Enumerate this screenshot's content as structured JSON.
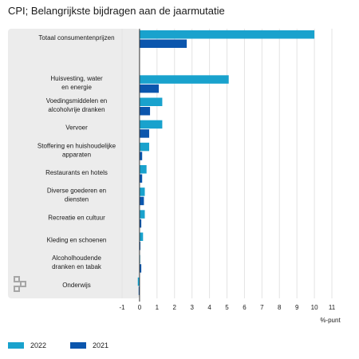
{
  "title": "CPI; Belangrijkste bijdragen aan de jaarmutatie",
  "colors": {
    "s2022": "#19a2cd",
    "s2021": "#0b56ad",
    "panel": "#ececec"
  },
  "logo_icon": "cbs-logo",
  "chart_data": {
    "type": "bar",
    "orientation": "horizontal",
    "title": "CPI; Belangrijkste bijdragen aan de jaarmutatie",
    "xlabel": "%-punt",
    "xlim": [
      -1,
      11
    ],
    "xticks": [
      -1,
      0,
      1,
      2,
      3,
      4,
      5,
      6,
      7,
      8,
      9,
      10,
      11
    ],
    "grid": true,
    "legend_position": "bottom-left",
    "categories": [
      [
        "Totaal consumentenprijzen"
      ],
      [],
      [
        "Huisvesting, water",
        "en energie"
      ],
      [
        "Voedingsmiddelen en",
        "alcoholvrije dranken"
      ],
      [
        "Vervoer"
      ],
      [
        "Stoffering en huishoudelijke",
        "apparaten"
      ],
      [
        "Restaurants en hotels"
      ],
      [
        "Diverse goederen en",
        "diensten"
      ],
      [
        "Recreatie en cultuur"
      ],
      [
        "Kleding en schoenen"
      ],
      [
        "Alcoholhoudende",
        "dranken en tabak"
      ],
      [
        "Onderwijs"
      ]
    ],
    "series": [
      {
        "name": "2022",
        "values": [
          10.0,
          null,
          5.1,
          1.3,
          1.3,
          0.55,
          0.4,
          0.3,
          0.3,
          0.2,
          0.0,
          -0.1
        ]
      },
      {
        "name": "2021",
        "values": [
          2.7,
          null,
          1.1,
          0.6,
          0.55,
          0.15,
          0.15,
          0.25,
          0.1,
          0.05,
          0.1,
          -0.05
        ]
      }
    ]
  }
}
